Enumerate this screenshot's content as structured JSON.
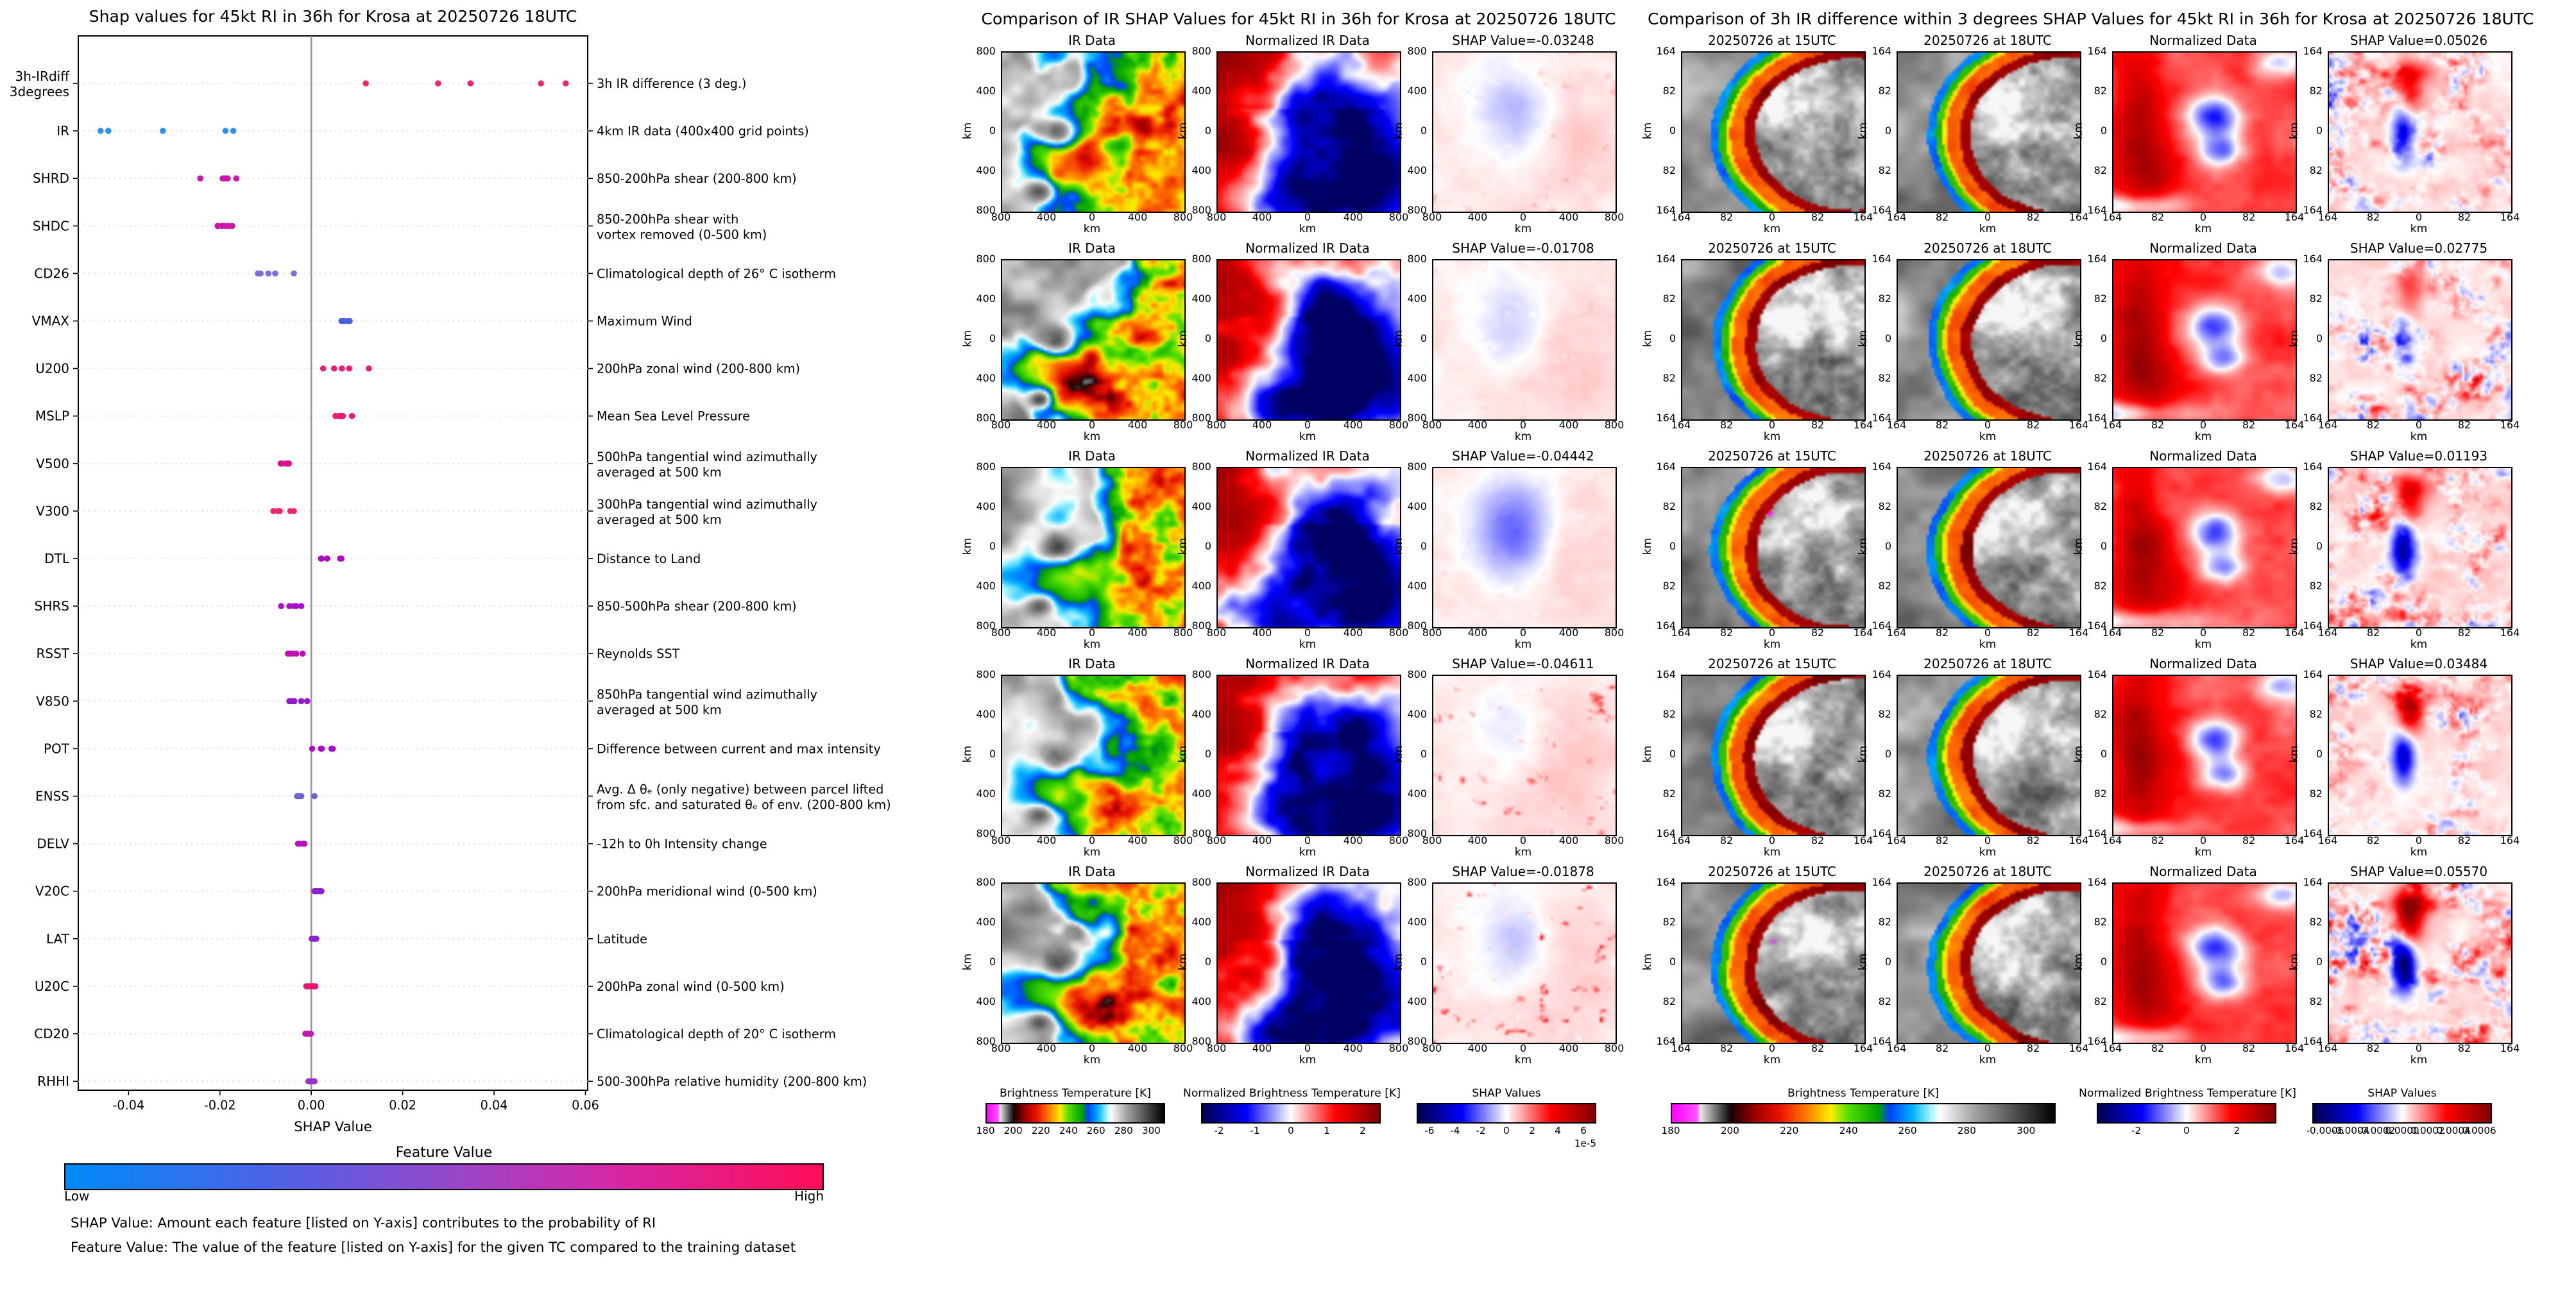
{
  "page": {
    "background": "#ffffff"
  },
  "chart_data": [
    {
      "type": "scatter",
      "variant": "shap-beeswarm-dotplot",
      "title": "Shap values for 45kt RI in 36h for Krosa at 20250726 18UTC",
      "xlabel": "SHAP Value",
      "x_range": [
        -0.051,
        0.0605
      ],
      "xticks": [
        -0.04,
        -0.02,
        0.0,
        0.02,
        0.04,
        0.06
      ],
      "xtick_labels": [
        "-0.04",
        "-0.02",
        "0.00",
        "0.02",
        "0.04",
        "0.06"
      ],
      "zero_line": 0.0,
      "grid": "dotted-horizontal-per-feature",
      "legend_position": "none",
      "colorbar": {
        "title": "Feature Value",
        "low_label": "Low",
        "high_label": "High",
        "gradient": [
          "#008af9 0%",
          "#5a5ce2 32%",
          "#9a46c8 52%",
          "#d428a6 72%",
          "#ff0d57 100%"
        ]
      },
      "caption_lines": [
        "SHAP Value: Amount each feature [listed on Y-axis] contributes to the probability of RI",
        "Feature Value: The value of the feature [listed on Y-axis] for the given TC compared to the training dataset"
      ],
      "features": [
        {
          "label": [
            "3h-IRdiff",
            "3degrees"
          ],
          "desc": [
            "3h IR difference (3 deg.)"
          ],
          "color": "#f5246e",
          "values": [
            0.01193,
            0.02775,
            0.03484,
            0.05026,
            0.0557
          ]
        },
        {
          "label": [
            "IR"
          ],
          "desc": [
            "4km IR data (400x400 grid points)"
          ],
          "color": "#2f92f2",
          "values": [
            -0.04611,
            -0.04442,
            -0.03248,
            -0.01878,
            -0.01708
          ]
        },
        {
          "label": [
            "SHRD"
          ],
          "desc": [
            "850-200hPa shear (200-800 km)"
          ],
          "color": "#ce16ae",
          "values": [
            -0.0243,
            -0.0194,
            -0.0189,
            -0.0183,
            -0.0164
          ]
        },
        {
          "label": [
            "SHDC"
          ],
          "desc": [
            "850-200hPa shear with",
            "vortex removed (0-500 km)"
          ],
          "color": "#ce16ae",
          "values": [
            -0.0205,
            -0.0196,
            -0.0189,
            -0.0181,
            -0.0173
          ]
        },
        {
          "label": [
            "CD26"
          ],
          "desc": [
            "Climatological depth of 26° C isotherm"
          ],
          "color": "#7a6fdb",
          "values": [
            -0.0117,
            -0.0111,
            -0.0094,
            -0.0079,
            -0.0038
          ]
        },
        {
          "label": [
            "VMAX"
          ],
          "desc": [
            "Maximum Wind"
          ],
          "color": "#4b5fe2",
          "values": [
            0.0066,
            0.0069,
            0.0072,
            0.008,
            0.0084
          ]
        },
        {
          "label": [
            "U200"
          ],
          "desc": [
            "200hPa zonal wind (200-800 km)"
          ],
          "color": "#ed1d77",
          "values": [
            0.0026,
            0.005,
            0.0067,
            0.0083,
            0.0126
          ]
        },
        {
          "label": [
            "MSLP"
          ],
          "desc": [
            "Mean Sea Level Pressure"
          ],
          "color": "#ed1d77",
          "values": [
            0.0053,
            0.0061,
            0.0065,
            0.0069,
            0.0089
          ]
        },
        {
          "label": [
            "V500"
          ],
          "desc": [
            "500hPa tangential wind azimuthally",
            "averaged at 500 km"
          ],
          "color": "#dd1190",
          "values": [
            -0.0067,
            -0.0063,
            -0.0055,
            -0.0052,
            -0.0049
          ]
        },
        {
          "label": [
            "V300"
          ],
          "desc": [
            "300hPa tangential wind azimuthally",
            "averaged at 500 km"
          ],
          "color": "#f2266b",
          "values": [
            -0.0083,
            -0.0073,
            -0.0069,
            -0.0046,
            -0.0038
          ]
        },
        {
          "label": [
            "DTL"
          ],
          "desc": [
            "Distance to Land"
          ],
          "color": "#ad0ac0",
          "values": [
            0.0021,
            0.0023,
            0.0035,
            0.0063,
            0.0066
          ]
        },
        {
          "label": [
            "SHRS"
          ],
          "desc": [
            "850-500hPa shear (200-800 km)"
          ],
          "color": "#a911c9",
          "values": [
            -0.0066,
            -0.0048,
            -0.0038,
            -0.0033,
            -0.0022
          ]
        },
        {
          "label": [
            "RSST"
          ],
          "desc": [
            "Reynolds SST"
          ],
          "color": "#c00fb2",
          "values": [
            -0.0051,
            -0.0046,
            -0.004,
            -0.0033,
            -0.0019
          ]
        },
        {
          "label": [
            "V850"
          ],
          "desc": [
            "850hPa tangential wind azimuthally",
            "averaged at 500 km"
          ],
          "color": "#9318cd",
          "values": [
            -0.0048,
            -0.0043,
            -0.0037,
            -0.0022,
            -0.0009
          ]
        },
        {
          "label": [
            "POT"
          ],
          "desc": [
            "Difference between current and max intensity"
          ],
          "color": "#a90dc5",
          "values": [
            0.0002,
            0.0021,
            0.0023,
            0.0044,
            0.0047
          ]
        },
        {
          "label": [
            "ENSS"
          ],
          "desc": [
            "Avg. Δ θₑ (only negative) between parcel lifted",
            "from sfc. and saturated θₑ of env. (200-800 km)"
          ],
          "color": "#6a60d8",
          "values": [
            -0.0031,
            -0.0029,
            -0.0024,
            -0.0022,
            0.0007
          ]
        },
        {
          "label": [
            "DELV"
          ],
          "desc": [
            "-12h to 0h Intensity change"
          ],
          "color": "#b513ba",
          "values": [
            -0.0029,
            -0.0026,
            -0.0019,
            -0.0017,
            -0.0015
          ]
        },
        {
          "label": [
            "V20C"
          ],
          "desc": [
            "200hPa meridional wind (0-500 km)"
          ],
          "color": "#8f1ecd",
          "values": [
            0.0007,
            0.001,
            0.0013,
            0.0018,
            0.0022
          ]
        },
        {
          "label": [
            "LAT"
          ],
          "desc": [
            "Latitude"
          ],
          "color": "#8b22cf",
          "values": [
            0.0001,
            0.0004,
            0.0007,
            0.0009,
            0.0011
          ]
        },
        {
          "label": [
            "U20C"
          ],
          "desc": [
            "200hPa zonal wind (0-500 km)"
          ],
          "color": "#ea1570",
          "values": [
            -0.0011,
            -0.0006,
            -0.0001,
            0.0004,
            0.0009
          ]
        },
        {
          "label": [
            "CD20"
          ],
          "desc": [
            "Climatological depth of 20° C isotherm"
          ],
          "color": "#c316ac",
          "values": [
            -0.0013,
            -0.001,
            -0.0007,
            -0.0004,
            -0.0001
          ]
        },
        {
          "label": [
            "RHHI"
          ],
          "desc": [
            "500-300hPa relative humidity (200-800 km)"
          ],
          "color": "#9d30c9",
          "values": [
            -0.0006,
            -0.0003,
            0.0,
            0.0004,
            0.0007
          ]
        }
      ]
    },
    {
      "type": "heatmap",
      "variant": "map-comparison-grid",
      "title": "Comparison of IR SHAP Values for 45kt RI in 36h for Krosa at 20250726 18UTC",
      "col_titles": [
        "IR Data",
        "Normalized IR Data"
      ],
      "col_kinds": [
        "ir_wide",
        "norm_ir",
        "shap_faint"
      ],
      "row_shap_titles": [
        "SHAP Value=-0.03248",
        "SHAP Value=-0.01708",
        "SHAP Value=-0.04442",
        "SHAP Value=-0.04611",
        "SHAP Value=-0.01878"
      ],
      "row_shap_values": [
        -0.03248,
        -0.01708,
        -0.04442,
        -0.04611,
        -0.01878
      ],
      "axis_unit": "km",
      "xtick_labels": [
        "800",
        "400",
        "0",
        "400",
        "800"
      ],
      "ytick_labels": [
        "800",
        "400",
        "0",
        "400",
        "800"
      ],
      "colorbars": [
        {
          "title": "Brightness Temperature [K]",
          "palette": "ir",
          "span": 1,
          "ticks": [
            "180",
            "200",
            "220",
            "240",
            "260",
            "280",
            "300"
          ],
          "tick_pos": [
            0,
            15.4,
            30.8,
            46.2,
            61.5,
            76.9,
            92.3
          ]
        },
        {
          "title": "Normalized Brightness Temperature [K]",
          "palette": "seismic",
          "span": 1,
          "ticks": [
            "-2",
            "-1",
            "0",
            "1",
            "2"
          ],
          "tick_pos": [
            10,
            30,
            50,
            70,
            90
          ]
        },
        {
          "title": "SHAP Values",
          "palette": "seismic",
          "span": 1,
          "ticks": [
            "-6",
            "-4",
            "-2",
            "0",
            "2",
            "4",
            "6"
          ],
          "tick_pos": [
            7.1,
            21.4,
            35.7,
            50,
            64.3,
            78.6,
            92.9
          ],
          "multiplier": "1e-5"
        }
      ]
    },
    {
      "type": "heatmap",
      "variant": "map-comparison-grid",
      "title": "Comparison of 3h IR difference within 3 degrees SHAP Values for 45kt RI in 36h for Krosa at 20250726 18UTC",
      "col_titles": [
        "20250726 at 15UTC",
        "20250726 at 18UTC",
        "Normalized Data"
      ],
      "col_kinds": [
        "ir_zoom15",
        "ir_zoom18",
        "norm_red",
        "shap_speckle"
      ],
      "row_shap_titles": [
        "SHAP Value=0.05026",
        "SHAP Value=0.02775",
        "SHAP Value=0.01193",
        "SHAP Value=0.03484",
        "SHAP Value=0.05570"
      ],
      "row_shap_values": [
        0.05026,
        0.02775,
        0.01193,
        0.03484,
        0.0557
      ],
      "axis_unit": "km",
      "xtick_labels": [
        "164",
        "82",
        "0",
        "82",
        "164"
      ],
      "ytick_labels": [
        "164",
        "82",
        "0",
        "82",
        "164"
      ],
      "colorbars": [
        {
          "title": "Brightness Temperature [K]",
          "palette": "ir",
          "span": 2,
          "ticks": [
            "180",
            "200",
            "220",
            "240",
            "260",
            "280",
            "300"
          ],
          "tick_pos": [
            0,
            15.4,
            30.8,
            46.2,
            61.5,
            76.9,
            92.3
          ]
        },
        {
          "title": "Normalized Brightness Temperature [K]",
          "palette": "seismic",
          "span": 1,
          "ticks": [
            "-2",
            "0",
            "2"
          ],
          "tick_pos": [
            22,
            50,
            78
          ]
        },
        {
          "title": "SHAP Values",
          "palette": "seismic",
          "span": 1,
          "ticks": [
            "-0.0006",
            "-0.0004",
            "-0.0002",
            "0.0000",
            "0.0002",
            "0.0004",
            "0.0006"
          ],
          "tick_pos": [
            7.1,
            21.4,
            35.7,
            50,
            64.3,
            78.6,
            92.9
          ]
        }
      ]
    }
  ]
}
